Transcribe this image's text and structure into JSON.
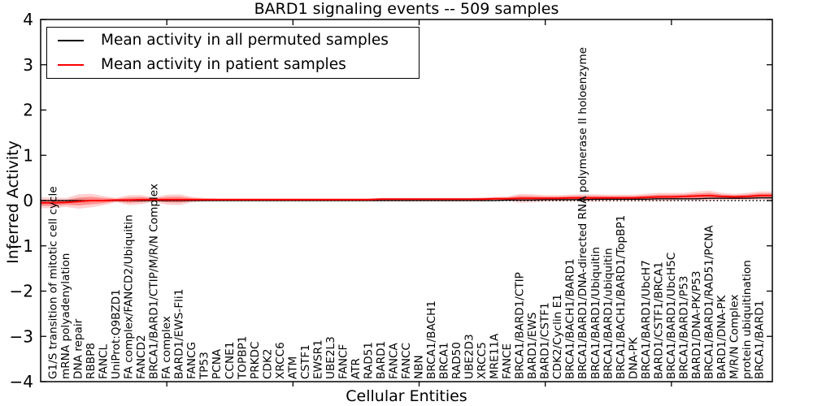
{
  "chart_data": {
    "type": "line",
    "title": "BARD1 signaling events -- 509 samples",
    "xlabel": "Cellular Entities",
    "ylabel": "Inferred Activity",
    "ylim": [
      -4,
      4
    ],
    "xlim_units": [
      0,
      58
    ],
    "grid": false,
    "legend_position": "upper left",
    "zero_reference_line": 0,
    "colors": {
      "patient": "#ff0000",
      "permuted": "#000000",
      "band_fill": "#ff0000",
      "frame": "#000000"
    },
    "yticks": [
      "4",
      "3",
      "2",
      "1",
      "0",
      "−1",
      "−2",
      "−3",
      "−4"
    ],
    "ytick_values": [
      4,
      3,
      2,
      1,
      0,
      -1,
      -2,
      -3,
      -4
    ],
    "xtick_units": [
      10,
      20,
      30,
      40,
      50
    ],
    "legend": [
      {
        "label": "Mean activity in all permuted samples",
        "color": "#000000"
      },
      {
        "label": "Mean activity in patient samples",
        "color": "#ff0000"
      }
    ],
    "categories": [
      "G1/S transition of mitotic cell cycle",
      "mRNA polyadenylation",
      "DNA repair",
      "RBBP8",
      "FANCL",
      "UniProt:Q9BZD1",
      "FA complex/FANCD2/Ubiquitin",
      "FANCD2",
      "BRCA1/BARD1/CTIP/M/R/N Complex",
      "FA complex",
      "BARD1/EWS-Fli1",
      "FANCG",
      "TP53",
      "PCNA",
      "CCNE1",
      "TOPBP1",
      "PRKDC",
      "CDK2",
      "XRCC6",
      "ATM",
      "CSTF1",
      "EWSR1",
      "UBE2L3",
      "FANCF",
      "ATR",
      "RAD51",
      "BARD1",
      "FANCA",
      "FANCC",
      "NBN",
      "BRCA1/BACH1",
      "BRCA1",
      "RAD50",
      "UBE2D3",
      "XRCC5",
      "MRE11A",
      "FANCE",
      "BRCA1/BARD1/CTIP",
      "BARD1/EWS",
      "BARD1/CSTF1",
      "CDK2/Cyclin E1",
      "BRCA1/BACH1/BARD1",
      "BRCA1/BARD1/DNA-directed RNA polymerase II holoenzyme",
      "BRCA1/BARD1/Ubiquitin",
      "BRCA1/BARD1/ubiquitin",
      "BRCA1/BACH1/BARD1/TopBP1",
      "DNA-PK",
      "BRCA1/BARD1/UbcH7",
      "BARD1/CSTF1/BRCA1",
      "BRCA1/BARD1/UbcH5C",
      "BRCA1/BARD1/P53",
      "BARD1/DNA-PK/P53",
      "BRCA1/BARD1/RAD51/PCNA",
      "BARD1/DNA-PK",
      "M/R/N Complex",
      "protein ubiquitination",
      "BRCA1/BARD1"
    ],
    "series": [
      {
        "name": "Mean activity in all permuted samples",
        "color": "#000000",
        "values": [
          0,
          0,
          0,
          0,
          0,
          0,
          0,
          0,
          0,
          0,
          0,
          0,
          0,
          0,
          0,
          0,
          0,
          0,
          0,
          0,
          0,
          0,
          0,
          0,
          0,
          0,
          0,
          0,
          0,
          0,
          0,
          0,
          0,
          0,
          0,
          0,
          0.01,
          0.01,
          0.01,
          0.02,
          0.02,
          0.02,
          0.02,
          0.03,
          0.03,
          0.03,
          0.03,
          0.03,
          0.04,
          0.04,
          0.04,
          0.04,
          0.05,
          0.05,
          0.05,
          0.05,
          0.06
        ]
      },
      {
        "name": "Mean activity in patient samples",
        "color": "#ff0000",
        "values": [
          -0.05,
          -0.04,
          -0.02,
          0,
          0,
          0.01,
          0.01,
          0.02,
          0.02,
          0.02,
          0.02,
          0.02,
          0.02,
          0.02,
          0.02,
          0.02,
          0.02,
          0.02,
          0.02,
          0.02,
          0.02,
          0.02,
          0.02,
          0.02,
          0.02,
          0.02,
          0.03,
          0.03,
          0.03,
          0.03,
          0.03,
          0.03,
          0.03,
          0.03,
          0.03,
          0.04,
          0.04,
          0.05,
          0.05,
          0.05,
          0.05,
          0.06,
          0.06,
          0.06,
          0.06,
          0.06,
          0.06,
          0.07,
          0.08,
          0.08,
          0.09,
          0.1,
          0.11,
          0.09,
          0.08,
          0.09,
          0.11
        ],
        "band_halfwidth": [
          0.12,
          0.1,
          0.16,
          0.15,
          0.1,
          0.05,
          0.11,
          0.1,
          0.05,
          0.11,
          0.12,
          0.06,
          0.04,
          0.03,
          0.03,
          0.03,
          0.03,
          0.03,
          0.03,
          0.03,
          0.03,
          0.03,
          0.03,
          0.03,
          0.03,
          0.03,
          0.03,
          0.03,
          0.03,
          0.03,
          0.03,
          0.03,
          0.03,
          0.03,
          0.04,
          0.04,
          0.05,
          0.1,
          0.09,
          0.07,
          0.07,
          0.07,
          0.08,
          0.08,
          0.07,
          0.07,
          0.07,
          0.08,
          0.09,
          0.09,
          0.08,
          0.1,
          0.11,
          0.08,
          0.07,
          0.08,
          0.09
        ]
      }
    ]
  }
}
